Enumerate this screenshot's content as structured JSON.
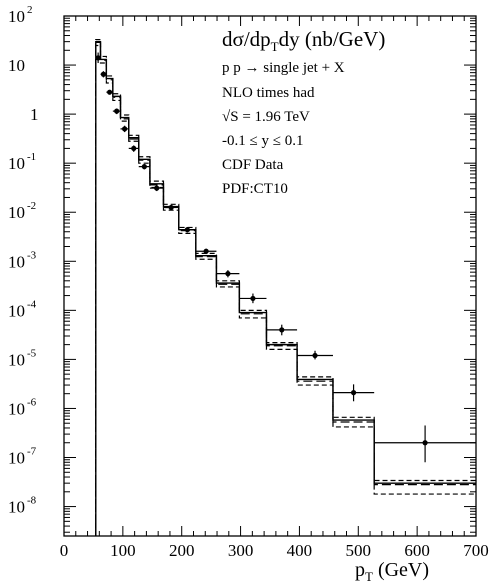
{
  "chart_data": {
    "type": "histogram",
    "title": "dσ/dp_T dy (nb/GeV)",
    "title_parts": {
      "a": "dσ/dp",
      "sub": "T",
      "b": "dy (nb/GeV)"
    },
    "xlabel": "p_T (GeV)",
    "xlabel_parts": {
      "a": "p",
      "sub": "T",
      "b": " (GeV)"
    },
    "ylabel": "",
    "xlim": [
      0,
      700
    ],
    "ylim_log10": [
      -8.6,
      2
    ],
    "yscale": "log",
    "grid": false,
    "x_ticks": [
      0,
      100,
      200,
      300,
      400,
      500,
      600,
      700
    ],
    "y_tick_labels": [
      {
        "exp": 2,
        "base": "10",
        "sup": "2"
      },
      {
        "exp": 1,
        "base": "10",
        "sup": ""
      },
      {
        "exp": 0,
        "base": "1",
        "sup": ""
      },
      {
        "exp": -1,
        "base": "10",
        "sup": "-1"
      },
      {
        "exp": -2,
        "base": "10",
        "sup": "-2"
      },
      {
        "exp": -3,
        "base": "10",
        "sup": "-3"
      },
      {
        "exp": -4,
        "base": "10",
        "sup": "-4"
      },
      {
        "exp": -5,
        "base": "10",
        "sup": "-5"
      },
      {
        "exp": -6,
        "base": "10",
        "sup": "-6"
      },
      {
        "exp": -7,
        "base": "10",
        "sup": "-7"
      },
      {
        "exp": -8,
        "base": "10",
        "sup": "-8"
      }
    ],
    "annotations": [
      "p p → single jet + X",
      "NLO times had",
      "√S = 1.96 TeV",
      "-0.1 ≤ y ≤ 0.1",
      "CDF Data",
      "PDF:CT10"
    ],
    "bin_edges": [
      54,
      62,
      72,
      83,
      96,
      110,
      127,
      146,
      169,
      195,
      224,
      259,
      298,
      344,
      396,
      457,
      527,
      700
    ],
    "series": [
      {
        "style": "solid",
        "values": [
          30,
          13,
          5.3,
          2.3,
          0.85,
          0.33,
          0.12,
          0.038,
          0.013,
          0.0044,
          0.0013,
          0.00036,
          9e-05,
          2e-05,
          3.9e-06,
          5.8e-07,
          3e-08
        ]
      },
      {
        "style": "dashed",
        "values": [
          25,
          11,
          4.3,
          1.9,
          0.72,
          0.28,
          0.1,
          0.032,
          0.011,
          0.0037,
          0.0011,
          0.0003,
          7e-05,
          1.6e-05,
          3e-06,
          4.2e-07,
          1.8e-08
        ]
      },
      {
        "style": "dashed",
        "values": [
          33,
          15,
          6.0,
          2.6,
          0.96,
          0.37,
          0.135,
          0.043,
          0.0145,
          0.0049,
          0.00145,
          0.0004,
          0.0001,
          2.2e-05,
          4.4e-06,
          6.6e-07,
          3.4e-08
        ]
      },
      {
        "style": "long-dashed",
        "values": [
          29,
          12.5,
          5.0,
          2.2,
          0.8,
          0.31,
          0.115,
          0.036,
          0.0125,
          0.0042,
          0.00124,
          0.00034,
          8.5e-05,
          1.9e-05,
          3.6e-06,
          5.3e-07,
          2.8e-08
        ]
      }
    ],
    "points": [
      {
        "x": 58,
        "xlo": 54,
        "xhi": 62,
        "y": 14,
        "ylo": 11,
        "yhi": 18
      },
      {
        "x": 67,
        "xlo": 62,
        "xhi": 72,
        "y": 6.5,
        "ylo": 5.6,
        "yhi": 7.5
      },
      {
        "x": 77.5,
        "xlo": 72,
        "xhi": 83,
        "y": 2.8,
        "ylo": 2.5,
        "yhi": 3.1
      },
      {
        "x": 89.5,
        "xlo": 83,
        "xhi": 96,
        "y": 1.15,
        "ylo": 1.0,
        "yhi": 1.3
      },
      {
        "x": 103,
        "xlo": 96,
        "xhi": 110,
        "y": 0.5,
        "ylo": 0.43,
        "yhi": 0.58
      },
      {
        "x": 118.5,
        "xlo": 110,
        "xhi": 127,
        "y": 0.2,
        "ylo": 0.17,
        "yhi": 0.23
      },
      {
        "x": 136.5,
        "xlo": 127,
        "xhi": 146,
        "y": 0.085,
        "ylo": 0.075,
        "yhi": 0.096
      },
      {
        "x": 157.5,
        "xlo": 146,
        "xhi": 169,
        "y": 0.031,
        "ylo": 0.027,
        "yhi": 0.035
      },
      {
        "x": 182,
        "xlo": 169,
        "xhi": 195,
        "y": 0.0125,
        "ylo": 0.011,
        "yhi": 0.014
      },
      {
        "x": 209.5,
        "xlo": 195,
        "xhi": 224,
        "y": 0.0044,
        "ylo": 0.0039,
        "yhi": 0.005
      },
      {
        "x": 241.5,
        "xlo": 224,
        "xhi": 259,
        "y": 0.0016,
        "ylo": 0.0014,
        "yhi": 0.0018
      },
      {
        "x": 278.5,
        "xlo": 259,
        "xhi": 298,
        "y": 0.00056,
        "ylo": 0.00047,
        "yhi": 0.00066
      },
      {
        "x": 321,
        "xlo": 298,
        "xhi": 344,
        "y": 0.000175,
        "ylo": 0.00014,
        "yhi": 0.00022
      },
      {
        "x": 370,
        "xlo": 344,
        "xhi": 396,
        "y": 4e-05,
        "ylo": 3.1e-05,
        "yhi": 5.1e-05
      },
      {
        "x": 426.5,
        "xlo": 396,
        "xhi": 457,
        "y": 1.2e-05,
        "ylo": 1e-05,
        "yhi": 1.5e-05
      },
      {
        "x": 492,
        "xlo": 457,
        "xhi": 527,
        "y": 2.1e-06,
        "ylo": 1.4e-06,
        "yhi": 3.1e-06
      },
      {
        "x": 613.5,
        "xlo": 527,
        "xhi": 700,
        "y": 2e-07,
        "ylo": 8e-08,
        "yhi": 4.5e-07
      }
    ]
  }
}
